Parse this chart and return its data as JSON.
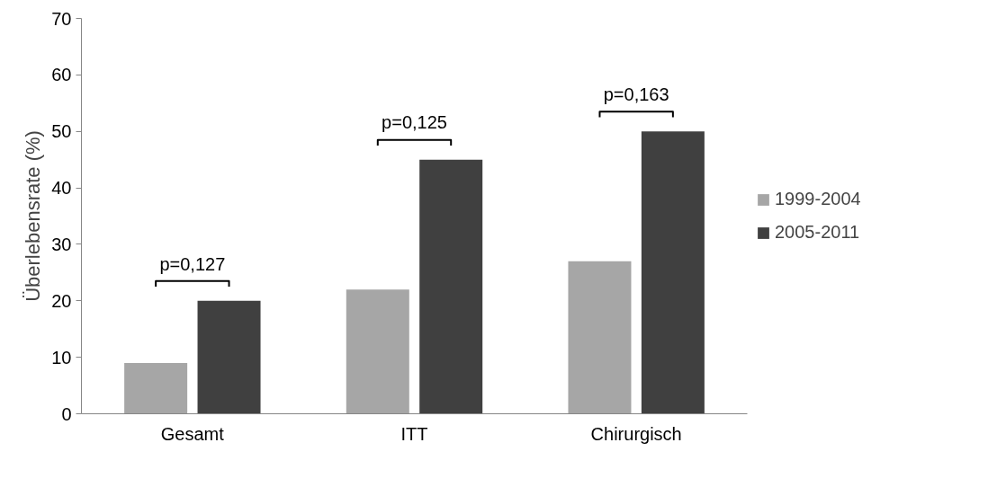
{
  "chart_data": {
    "type": "bar",
    "ylabel": "Überlebensrate (%)",
    "categories": [
      "Gesamt",
      "ITT",
      "Chirurgisch"
    ],
    "series": [
      {
        "name": "1999-2004",
        "color": "#a6a6a6",
        "values": [
          9,
          22,
          27
        ]
      },
      {
        "name": "2005-2011",
        "color": "#404040",
        "values": [
          20,
          45,
          50
        ]
      }
    ],
    "ylim": [
      0,
      70
    ],
    "yticks": [
      0,
      10,
      20,
      30,
      40,
      50,
      60,
      70
    ],
    "grid": false,
    "legend": "right",
    "annotations": [
      "p=0,127",
      "p=0,125",
      "p=0,163"
    ]
  }
}
